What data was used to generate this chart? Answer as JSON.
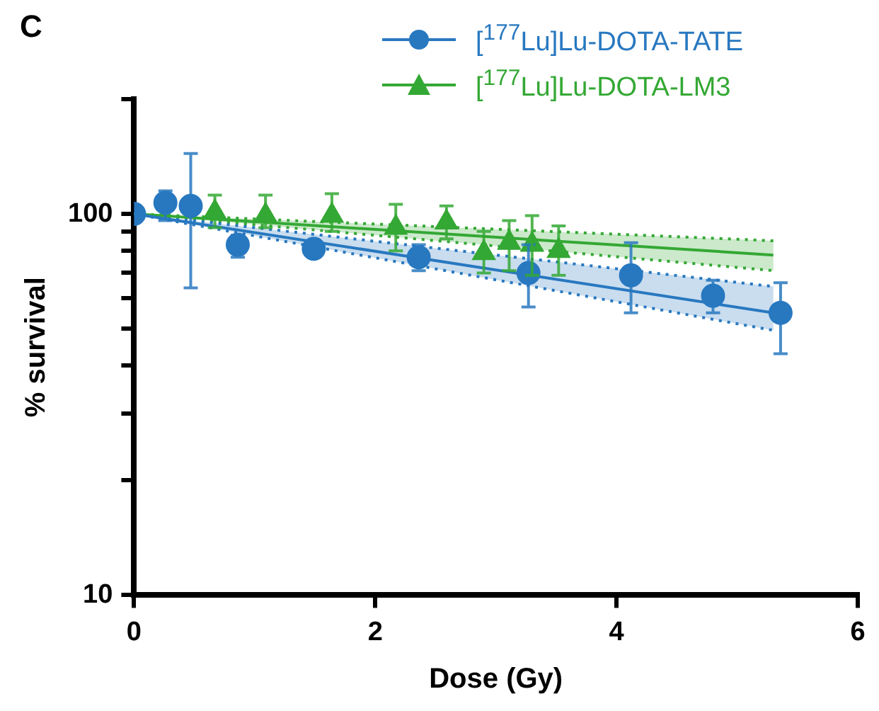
{
  "chart_data": {
    "type": "scatter",
    "xlabel": "Dose (Gy)",
    "ylabel": "% survival",
    "annotations": [
      "C"
    ],
    "log": "y",
    "grid": false,
    "legend": "top right",
    "xlim": [
      0,
      6
    ],
    "xticks": [
      0,
      2,
      4,
      6
    ],
    "ylim": [
      10,
      200
    ],
    "yticks": [
      10,
      {
        "value": 20,
        "label": null
      },
      {
        "value": 30,
        "label": null
      },
      {
        "value": 40,
        "label": null
      },
      {
        "value": 50,
        "label": null
      },
      {
        "value": 60,
        "label": null
      },
      {
        "value": 70,
        "label": null
      },
      {
        "value": 80,
        "label": null
      },
      {
        "value": 90,
        "label": null
      },
      100,
      {
        "value": 200,
        "label": null
      }
    ],
    "series": [
      {
        "name": "[$^{177}$Lu]Lu-DOTA-TATE",
        "marker": "circle",
        "color": "#2878c0",
        "x": [
          0,
          0.26,
          0.47,
          0.86,
          1.49,
          2.36,
          3.27,
          4.12,
          4.8,
          5.36
        ],
        "values": [
          100,
          107,
          105,
          83,
          81,
          77,
          70,
          69,
          61,
          55
        ],
        "errors": [
          null,
          [
            96,
            115
          ],
          [
            64,
            144
          ],
          [
            77,
            88
          ],
          [
            77,
            85
          ],
          [
            71,
            83
          ],
          [
            57,
            83
          ],
          [
            55,
            84
          ],
          [
            55,
            67
          ],
          [
            43,
            66
          ]
        ]
      },
      {
        "name": "[$^{177}$Lu]Lu-DOTA-LM3",
        "marker": "triangle",
        "color": "#34a834",
        "x": [
          0.67,
          1.09,
          1.64,
          2.17,
          2.59,
          2.9,
          3.11,
          3.3,
          3.52
        ],
        "values": [
          101,
          99,
          99,
          92,
          95,
          79,
          84,
          83,
          80
        ],
        "errors": [
          [
            92,
            112
          ],
          [
            92,
            112
          ],
          [
            90,
            113
          ],
          [
            80,
            106
          ],
          [
            86,
            105
          ],
          [
            70,
            90
          ],
          [
            71,
            96
          ],
          [
            69,
            99
          ],
          [
            69,
            93
          ]
        ]
      },
      {
        "type": "line",
        "color": "#2878c0",
        "x": [
          0,
          5.3
        ],
        "values": [
          100,
          55
        ],
        "lower": [
          100,
          49.5
        ],
        "upper": [
          100,
          64.5
        ]
      },
      {
        "type": "line",
        "color": "#34a834",
        "x": [
          0,
          5.3
        ],
        "values": [
          100,
          78
        ],
        "lower": [
          100,
          71
        ],
        "upper": [
          100,
          85
        ]
      },
      {
        "type": "line",
        "line_style": "dotted",
        "color": "#2878c0",
        "x": [
          0,
          5.3
        ],
        "values": [
          100,
          49.5
        ]
      },
      {
        "type": "line",
        "line_style": "dotted",
        "color": "#2878c0",
        "x": [
          0,
          5.3
        ],
        "values": [
          100,
          64.5
        ]
      },
      {
        "type": "line",
        "line_style": "dotted",
        "color": "#34a834",
        "x": [
          0,
          5.3
        ],
        "values": [
          100,
          71
        ]
      },
      {
        "type": "line",
        "line_style": "dotted",
        "color": "#34a834",
        "x": [
          0,
          5.3
        ],
        "values": [
          100,
          85
        ]
      }
    ]
  }
}
